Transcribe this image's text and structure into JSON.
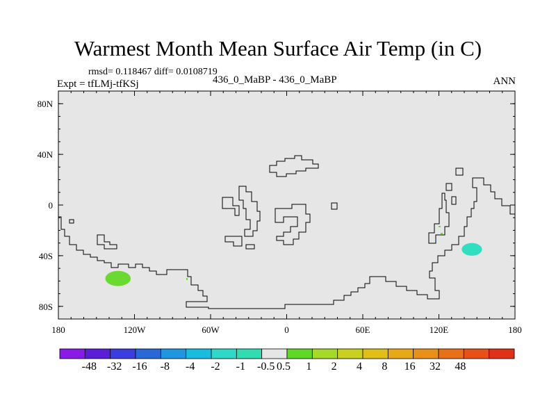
{
  "title": "Warmest Month Mean Surface Air Temp (in C)",
  "stats": "rmsd= 0.118467 diff= 0.0108719",
  "expt": "Expt = tfLMj-tfKSj",
  "center_label": "436_0_MaBP - 436_0_MaBP",
  "season": "ANN",
  "map": {
    "projection": "cylindrical equidistant",
    "lon_range": [
      -180,
      180
    ],
    "lat_range": [
      -90,
      90
    ],
    "background_color": "#e6e6e6",
    "x_ticks": [
      {
        "lon": -180,
        "label": "180"
      },
      {
        "lon": -120,
        "label": "120W"
      },
      {
        "lon": -60,
        "label": "60W"
      },
      {
        "lon": 0,
        "label": "0"
      },
      {
        "lon": 60,
        "label": "60E"
      },
      {
        "lon": 120,
        "label": "120E"
      },
      {
        "lon": 180,
        "label": "180"
      }
    ],
    "y_ticks": [
      {
        "lat": 80,
        "label": "80N"
      },
      {
        "lat": 40,
        "label": "40N"
      },
      {
        "lat": 0,
        "label": "0"
      },
      {
        "lat": -40,
        "label": "40S"
      },
      {
        "lat": -80,
        "label": "80S"
      }
    ],
    "anomalies": [
      {
        "name": "warm-anomaly-south-pacific",
        "lon": -133,
        "lat": -58,
        "lon_radius": 10,
        "lat_radius": 6,
        "color": "#6ad930"
      },
      {
        "name": "cool-anomaly-east-continent",
        "lon": 146,
        "lat": -35,
        "lon_radius": 8,
        "lat_radius": 5,
        "color": "#30dfc0"
      }
    ]
  },
  "colorbar": {
    "colors": [
      "#8a1ae6",
      "#5a1ed8",
      "#3a3ee0",
      "#2a68d8",
      "#1e96e0",
      "#18bce0",
      "#30d8c8",
      "#30dcb0",
      "#e6e6e6",
      "#60d828",
      "#a8d828",
      "#c8d020",
      "#e0c018",
      "#e8a818",
      "#e89018",
      "#e87018",
      "#e85018",
      "#e03018"
    ],
    "labels": [
      "-48",
      "-32",
      "-16",
      "-8",
      "-4",
      "-2",
      "-1",
      "-0.5",
      "0.5",
      "1",
      "2",
      "4",
      "8",
      "16",
      "32",
      "48"
    ]
  }
}
